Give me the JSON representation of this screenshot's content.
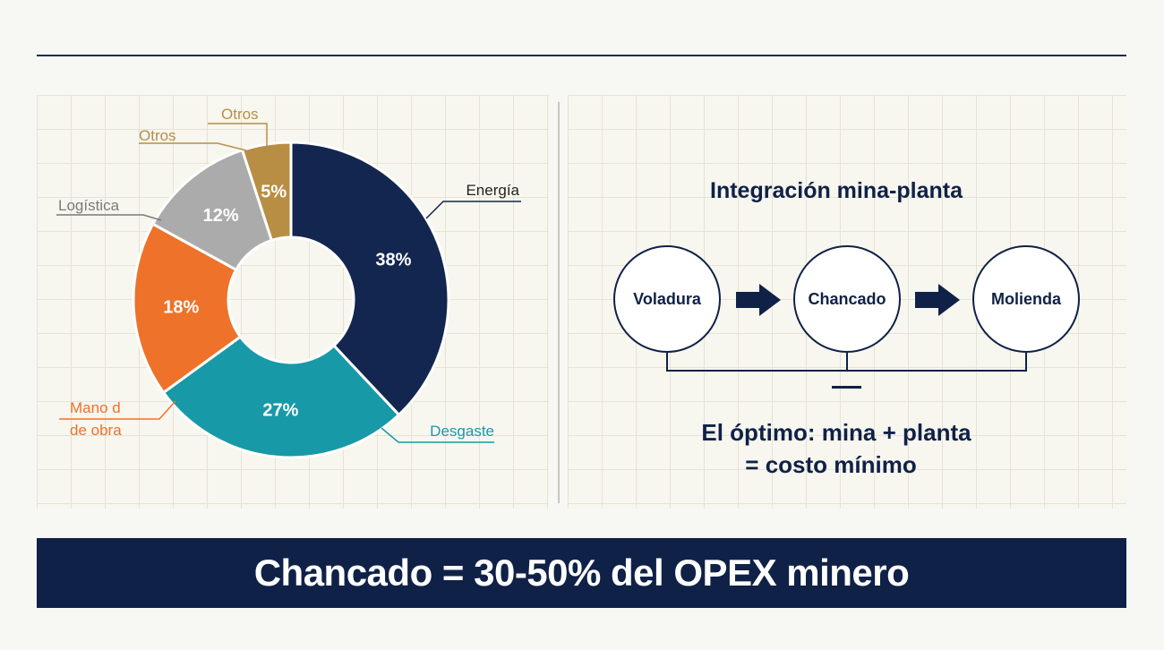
{
  "chart_data": {
    "type": "pie",
    "title": "",
    "slices": [
      {
        "label": "Energía",
        "value": 38,
        "value_label": "38%",
        "color": "#13264f"
      },
      {
        "label": "Desgaste",
        "value": 27,
        "value_label": "27%",
        "color": "#1899a7"
      },
      {
        "label": "Mano d\nde obra",
        "value": 18,
        "value_label": "18%",
        "color": "#ee7229"
      },
      {
        "label": "Logística",
        "value": 12,
        "value_label": "12%",
        "color": "#ababab"
      },
      {
        "label": "Otros",
        "value": 5,
        "value_label": "5%",
        "color": "#b88e45"
      }
    ],
    "extra_callout": "Otros",
    "callout_colors": {
      "Energía": "#13264f",
      "Desgaste": "#1899a7",
      "Mano d\nde obra": "#ee7229",
      "Logística": "#7a7a7a",
      "Otros": "#b88e45"
    },
    "donut": true,
    "legend": "callouts"
  },
  "flow": {
    "title": "Integración mina-planta",
    "steps": [
      "Voladura",
      "Chancado",
      "Molienda"
    ],
    "conclusion_line1": "El óptimo: mina + planta",
    "conclusion_line2": "= costo mínimo"
  },
  "banner": {
    "text": "Chancado = 30-50% del OPEX minero"
  },
  "colors": {
    "navy": "#0f2147",
    "accent_line": "#1c2a55"
  }
}
